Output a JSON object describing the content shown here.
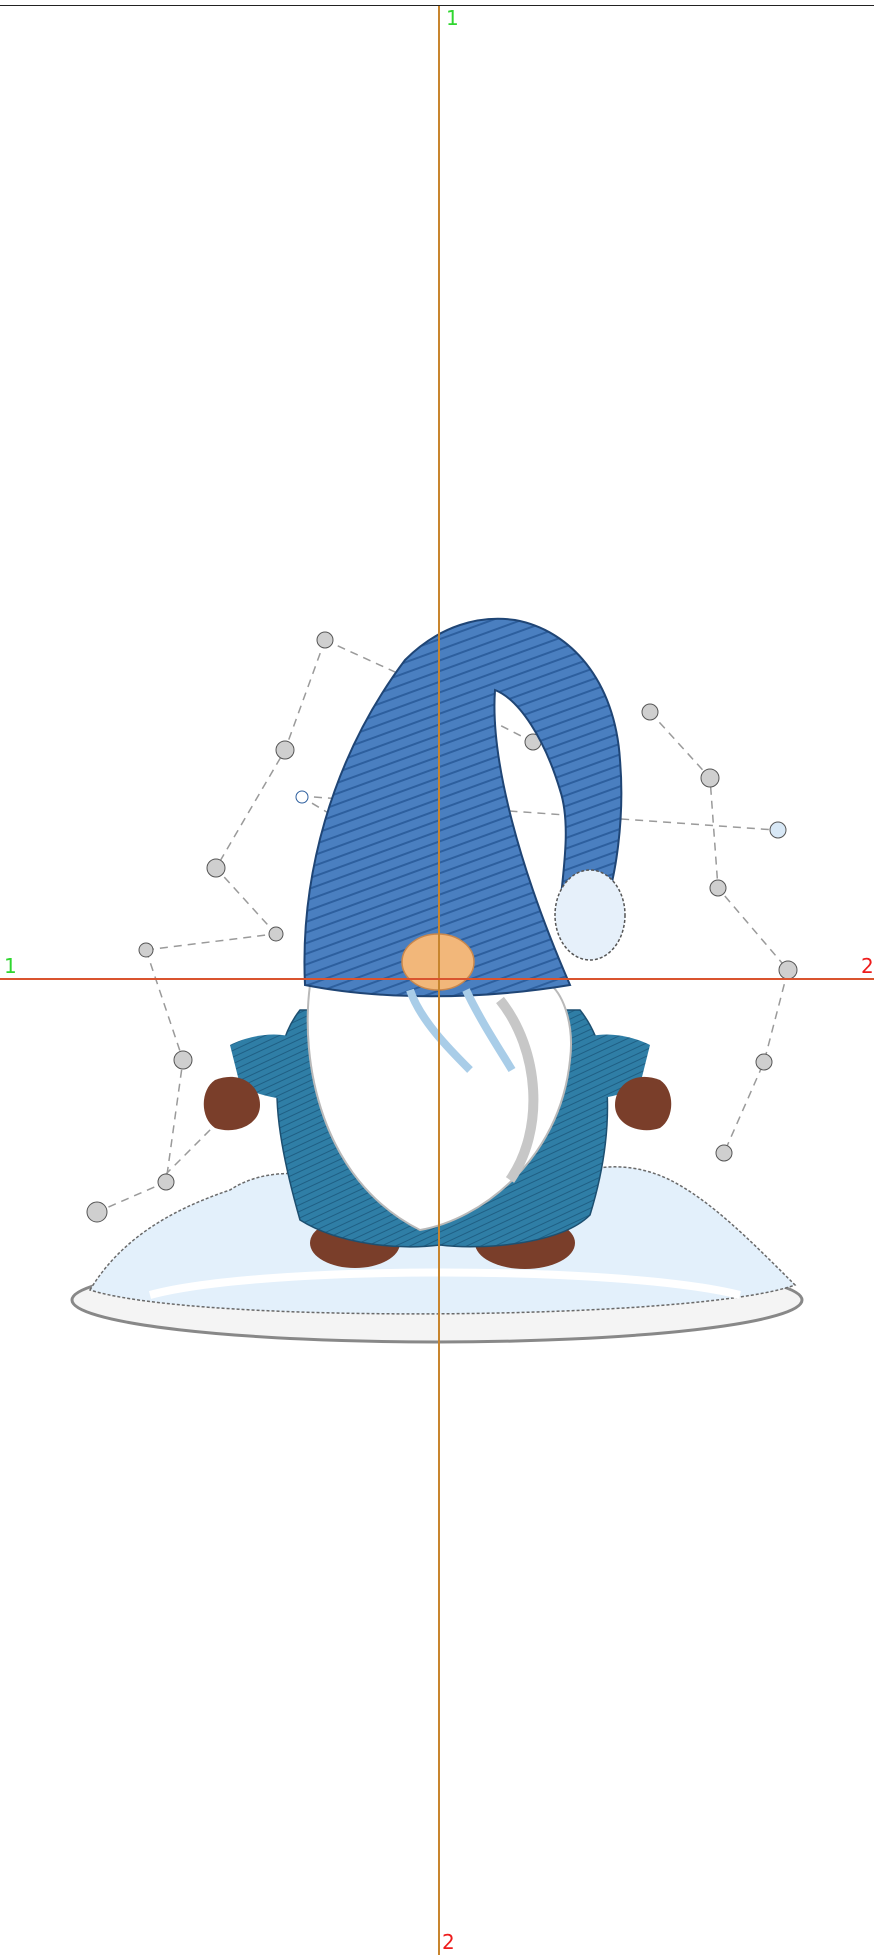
{
  "guides": {
    "vertical": {
      "start_label": "1",
      "end_label": "2"
    },
    "horizontal": {
      "start_label": "1",
      "end_label": "2"
    }
  },
  "colors": {
    "vertical_guide": "#c8852e",
    "horizontal_guide": "#d9542f",
    "start_label": "#2fd62f",
    "end_label": "#ee1c1c",
    "hat_dark": "#2e5f9e",
    "hat_light": "#6f9fd6",
    "coat": "#2f7ea6",
    "mitten": "#7a3e2a",
    "face": "#f2b77a",
    "beard": "#ffffff",
    "snow": "#e3f0fb"
  },
  "icons": {
    "design": "embroidery-gnome-icon",
    "travel_path": "stitch-path-icon"
  }
}
